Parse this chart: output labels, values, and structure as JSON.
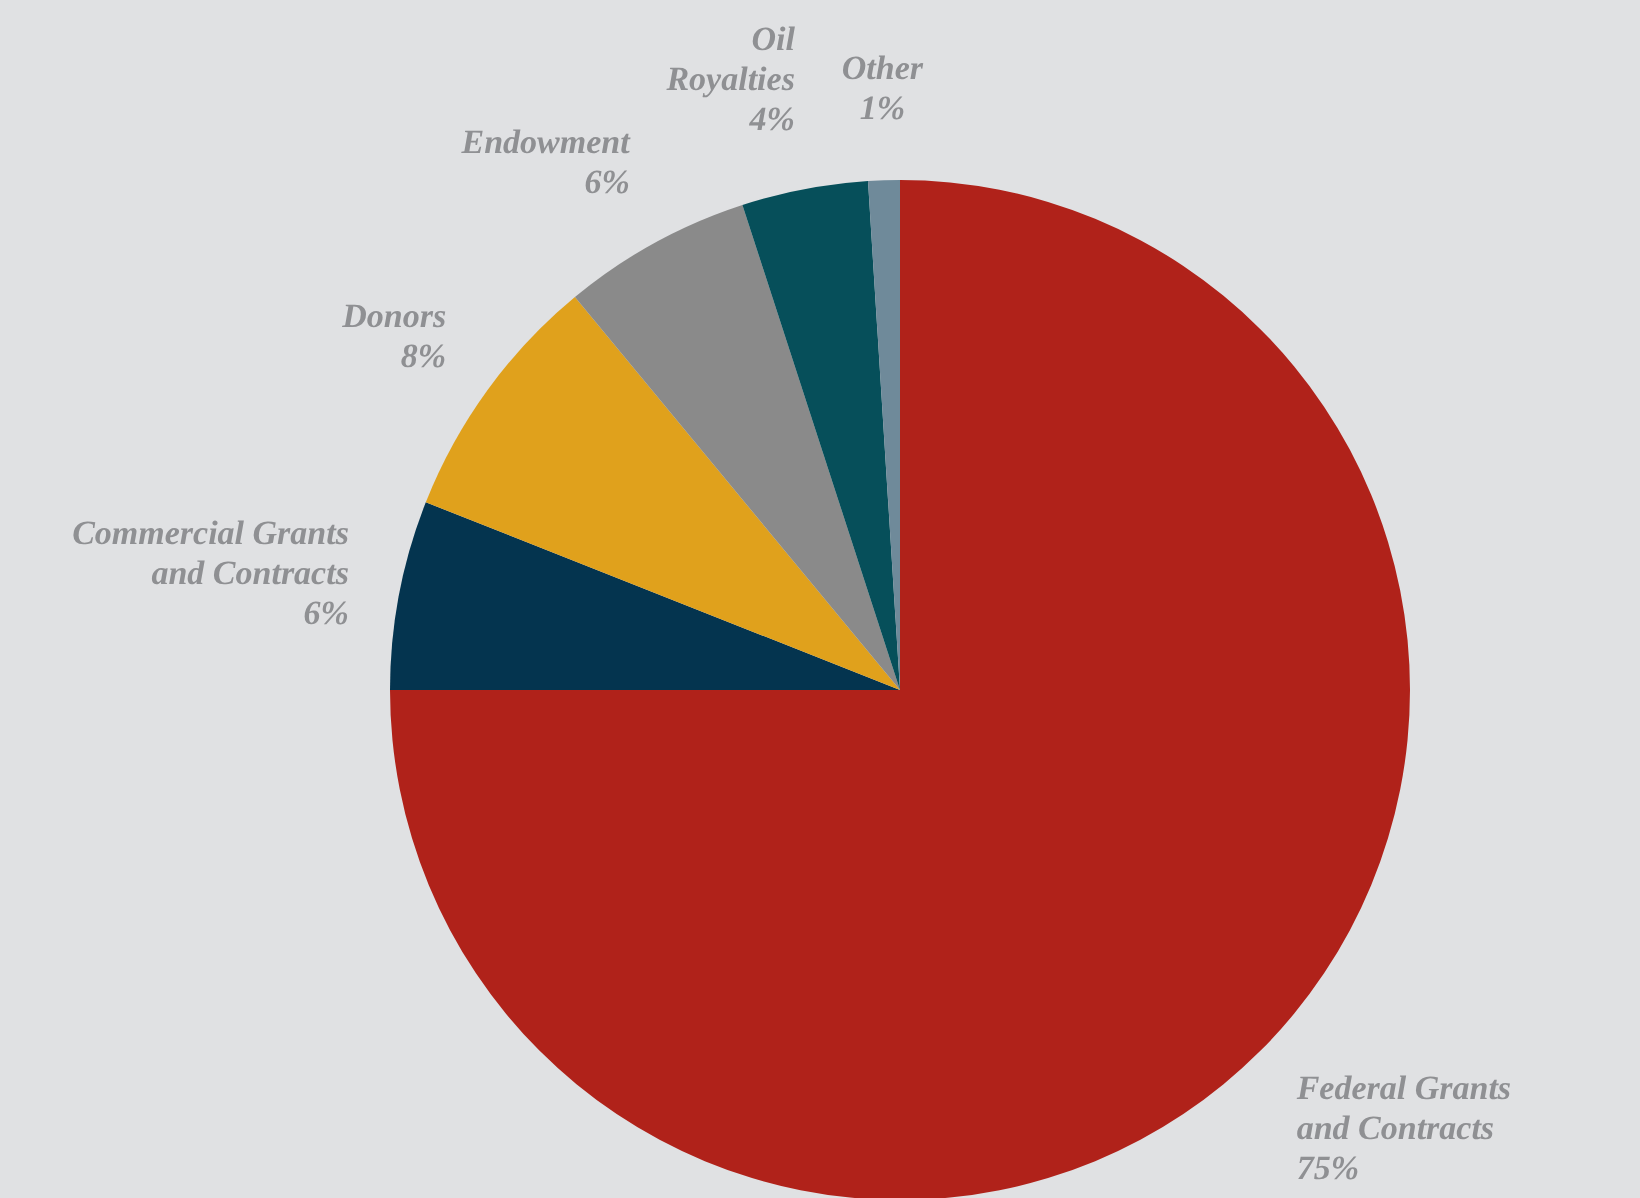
{
  "chart_data": {
    "type": "pie",
    "categories": [
      "Federal Grants\nand Contracts",
      "Commercial Grants\nand Contracts",
      "Donors",
      "Endowment",
      "Oil\nRoyalties",
      "Other"
    ],
    "values": [
      75,
      6,
      8,
      6,
      4,
      1
    ],
    "value_labels": [
      "75%",
      "6%",
      "8%",
      "6%",
      "4%",
      "1%"
    ],
    "colors": [
      "#b0221a",
      "#04344f",
      "#e0a11c",
      "#8a8a8a",
      "#064f5a",
      "#6f8a9a"
    ]
  }
}
